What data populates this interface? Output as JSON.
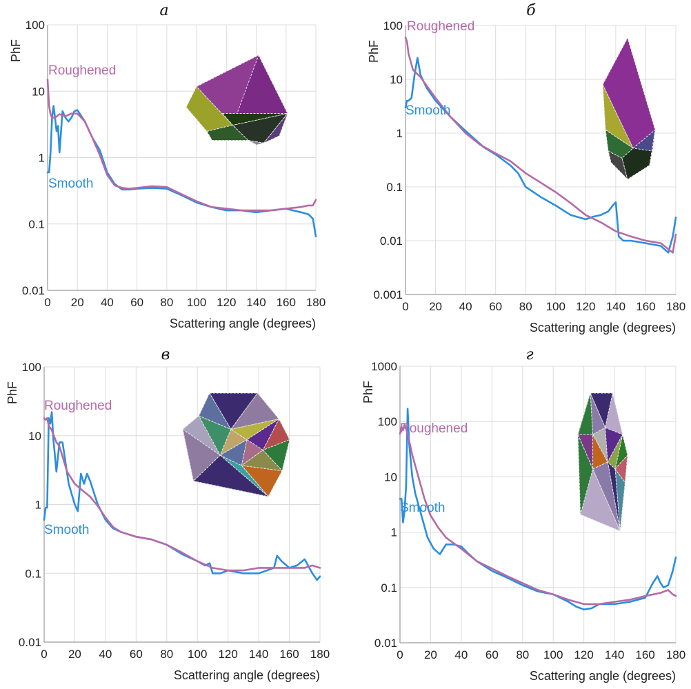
{
  "colors": {
    "smooth": "#2a8ee0",
    "roughened": "#b56aa6",
    "grid": "#dcdcdc",
    "axis": "#9a9a9a"
  },
  "chart_data": [
    {
      "panel": "а",
      "type": "line",
      "xlabel": "Scattering angle (degrees)",
      "ylabel": "PhF",
      "xlim": [
        0,
        180
      ],
      "ylim": [
        0.01,
        100
      ],
      "yscale": "log",
      "xticks": [
        "0",
        "20",
        "40",
        "60",
        "80",
        "100",
        "120",
        "140",
        "160",
        "180"
      ],
      "yticks": [
        "0.01",
        "0.1",
        "1",
        "10",
        "100"
      ],
      "grid": true,
      "series": [
        {
          "name": "Smooth",
          "x": [
            0,
            1,
            2,
            3,
            4,
            5,
            6,
            7,
            8,
            10,
            12,
            14,
            16,
            18,
            20,
            25,
            30,
            35,
            40,
            45,
            50,
            55,
            60,
            70,
            80,
            90,
            100,
            110,
            120,
            130,
            140,
            150,
            160,
            170,
            175,
            178,
            180
          ],
          "y": [
            0.6,
            0.6,
            1.2,
            4,
            6,
            4,
            2.5,
            3,
            1.2,
            5,
            4,
            3.5,
            4,
            5,
            5.2,
            3.5,
            2,
            1.3,
            0.6,
            0.4,
            0.33,
            0.33,
            0.34,
            0.35,
            0.34,
            0.27,
            0.21,
            0.18,
            0.16,
            0.16,
            0.15,
            0.16,
            0.17,
            0.15,
            0.14,
            0.12,
            0.065
          ]
        },
        {
          "name": "Roughened",
          "x": [
            0,
            1,
            2,
            3,
            5,
            8,
            12,
            16,
            20,
            25,
            30,
            35,
            40,
            45,
            50,
            55,
            60,
            70,
            80,
            90,
            100,
            110,
            120,
            130,
            140,
            150,
            160,
            170,
            175,
            178,
            180
          ],
          "y": [
            15,
            6,
            4.5,
            4,
            4,
            4.5,
            4.2,
            4.6,
            4.6,
            3.5,
            2,
            1.1,
            0.55,
            0.38,
            0.35,
            0.34,
            0.35,
            0.37,
            0.36,
            0.28,
            0.22,
            0.18,
            0.17,
            0.16,
            0.16,
            0.16,
            0.17,
            0.18,
            0.19,
            0.19,
            0.23
          ]
        }
      ]
    },
    {
      "panel": "б",
      "type": "line",
      "xlabel": "Scattering angle (degrees)",
      "ylabel": "PhF",
      "xlim": [
        0,
        180
      ],
      "ylim": [
        0.001,
        100
      ],
      "yscale": "log",
      "xticks": [
        "0",
        "20",
        "40",
        "60",
        "80",
        "100",
        "120",
        "140",
        "160",
        "180"
      ],
      "yticks": [
        "0.001",
        "0.01",
        "0.1",
        "1",
        "10",
        "100"
      ],
      "grid": true,
      "series": [
        {
          "name": "Smooth",
          "x": [
            0,
            1,
            2,
            4,
            6,
            8,
            10,
            14,
            20,
            30,
            40,
            50,
            52,
            60,
            70,
            75,
            80,
            90,
            100,
            110,
            120,
            125,
            130,
            135,
            138,
            140,
            142,
            145,
            150,
            160,
            170,
            175,
            178,
            180
          ],
          "y": [
            3,
            4,
            4,
            4.5,
            12,
            25,
            12,
            7,
            4,
            2,
            1.1,
            0.62,
            0.55,
            0.4,
            0.25,
            0.18,
            0.1,
            0.065,
            0.045,
            0.03,
            0.025,
            0.028,
            0.03,
            0.035,
            0.045,
            0.052,
            0.012,
            0.01,
            0.01,
            0.009,
            0.008,
            0.006,
            0.012,
            0.027
          ]
        },
        {
          "name": "Roughened",
          "x": [
            0,
            1,
            2,
            5,
            10,
            15,
            20,
            30,
            40,
            50,
            60,
            70,
            80,
            90,
            100,
            110,
            120,
            130,
            140,
            150,
            160,
            170,
            175,
            178,
            180
          ],
          "y": [
            60,
            50,
            30,
            15,
            11,
            7,
            4.5,
            2,
            1,
            0.6,
            0.42,
            0.3,
            0.18,
            0.12,
            0.08,
            0.05,
            0.03,
            0.022,
            0.015,
            0.012,
            0.01,
            0.009,
            0.007,
            0.006,
            0.013
          ]
        }
      ]
    },
    {
      "panel": "в",
      "type": "line",
      "xlabel": "Scattering angle (degrees)",
      "ylabel": "PhF",
      "xlim": [
        0,
        180
      ],
      "ylim": [
        0.01,
        100
      ],
      "yscale": "log",
      "xticks": [
        "0",
        "20",
        "40",
        "60",
        "80",
        "100",
        "120",
        "140",
        "160",
        "180"
      ],
      "yticks": [
        "0.01",
        "0.1",
        "1",
        "10",
        "100"
      ],
      "grid": true,
      "series": [
        {
          "name": "Smooth",
          "x": [
            0,
            1,
            2,
            3,
            4,
            5,
            6,
            8,
            10,
            12,
            14,
            16,
            20,
            22,
            24,
            26,
            28,
            30,
            32,
            35,
            40,
            45,
            50,
            60,
            70,
            80,
            90,
            100,
            105,
            108,
            110,
            115,
            120,
            130,
            140,
            150,
            152,
            155,
            160,
            165,
            170,
            175,
            178,
            180
          ],
          "y": [
            0.6,
            0.9,
            0.9,
            18,
            15,
            22,
            9,
            3,
            8,
            8,
            4,
            2,
            1,
            0.8,
            2.8,
            2,
            2.8,
            2.2,
            1.6,
            1,
            0.6,
            0.45,
            0.4,
            0.34,
            0.31,
            0.26,
            0.19,
            0.15,
            0.13,
            0.14,
            0.1,
            0.1,
            0.11,
            0.1,
            0.1,
            0.12,
            0.18,
            0.15,
            0.12,
            0.13,
            0.16,
            0.1,
            0.08,
            0.09
          ]
        },
        {
          "name": "Roughened",
          "x": [
            0,
            1,
            2,
            3,
            5,
            8,
            10,
            15,
            20,
            25,
            30,
            35,
            40,
            45,
            50,
            60,
            70,
            80,
            90,
            100,
            110,
            120,
            130,
            140,
            150,
            160,
            170,
            175,
            180
          ],
          "y": [
            18,
            17,
            18,
            14,
            12,
            8,
            7,
            3,
            2,
            1.6,
            1.3,
            0.95,
            0.65,
            0.47,
            0.4,
            0.34,
            0.31,
            0.26,
            0.2,
            0.15,
            0.12,
            0.11,
            0.11,
            0.12,
            0.12,
            0.12,
            0.12,
            0.13,
            0.12
          ]
        }
      ]
    },
    {
      "panel": "г",
      "type": "line",
      "xlabel": "Scattering angle (degrees)",
      "ylabel": "PhF",
      "xlim": [
        0,
        180
      ],
      "ylim": [
        0.01,
        1000
      ],
      "yscale": "log",
      "xticks": [
        "0",
        "20",
        "40",
        "60",
        "80",
        "100",
        "120",
        "140",
        "160",
        "180"
      ],
      "yticks": [
        "0.01",
        "0.1",
        "1",
        "10",
        "100",
        "1000"
      ],
      "grid": true,
      "series": [
        {
          "name": "Smooth",
          "x": [
            0,
            1,
            2,
            3,
            4,
            5,
            6,
            8,
            10,
            14,
            18,
            22,
            26,
            30,
            35,
            40,
            45,
            50,
            60,
            70,
            80,
            90,
            100,
            110,
            115,
            120,
            125,
            130,
            140,
            150,
            160,
            165,
            168,
            170,
            172,
            175,
            178,
            180
          ],
          "y": [
            4,
            4,
            1.5,
            2.5,
            7,
            170,
            40,
            10,
            5,
            2,
            0.8,
            0.5,
            0.4,
            0.6,
            0.6,
            0.55,
            0.4,
            0.3,
            0.2,
            0.15,
            0.11,
            0.085,
            0.075,
            0.055,
            0.045,
            0.04,
            0.042,
            0.05,
            0.05,
            0.055,
            0.065,
            0.12,
            0.16,
            0.12,
            0.1,
            0.11,
            0.2,
            0.35
          ]
        },
        {
          "name": "Roughened",
          "x": [
            0,
            1,
            2,
            3,
            5,
            8,
            12,
            16,
            20,
            25,
            30,
            40,
            50,
            60,
            70,
            80,
            90,
            100,
            110,
            120,
            130,
            140,
            150,
            160,
            170,
            175,
            178,
            180
          ],
          "y": [
            60,
            80,
            70,
            90,
            60,
            25,
            10,
            4,
            2,
            1.2,
            0.8,
            0.5,
            0.3,
            0.22,
            0.16,
            0.12,
            0.09,
            0.075,
            0.06,
            0.05,
            0.05,
            0.055,
            0.06,
            0.07,
            0.08,
            0.09,
            0.075,
            0.07
          ]
        }
      ]
    }
  ],
  "panel_labels": [
    "а",
    "б",
    "в",
    "г"
  ],
  "series_labels": {
    "smooth": "Smooth",
    "roughened": "Roughened"
  },
  "xlabel_text": "Scattering angle (degrees)",
  "ylabel_text": "PhF"
}
